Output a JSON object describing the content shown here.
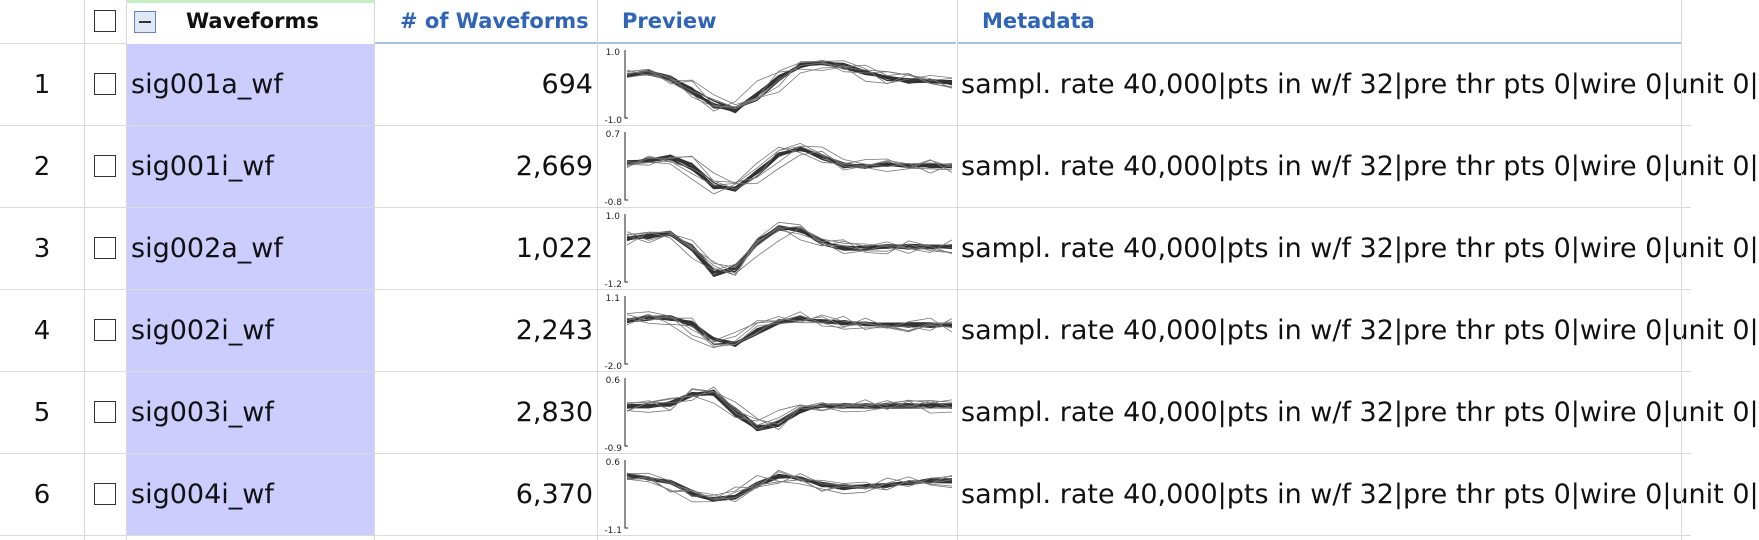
{
  "header": {
    "waveforms_label": "Waveforms",
    "count_label": "# of Waveforms",
    "preview_label": "Preview",
    "metadata_label": "Metadata"
  },
  "rows": [
    {
      "index": "1",
      "name": "sig001a_wf",
      "count": "694",
      "ymax": "1.0",
      "ymin": "-1.0",
      "metadata": "sampl. rate 40,000|pts in w/f 32|pre thr pts 0|wire 0|unit 0|"
    },
    {
      "index": "2",
      "name": "sig001i_wf",
      "count": "2,669",
      "ymax": "0.7",
      "ymin": "-0.8",
      "metadata": "sampl. rate 40,000|pts in w/f 32|pre thr pts 0|wire 0|unit 0|"
    },
    {
      "index": "3",
      "name": "sig002a_wf",
      "count": "1,022",
      "ymax": "1.0",
      "ymin": "-1.2",
      "metadata": "sampl. rate 40,000|pts in w/f 32|pre thr pts 0|wire 0|unit 0|"
    },
    {
      "index": "4",
      "name": "sig002i_wf",
      "count": "2,243",
      "ymax": "1.1",
      "ymin": "-2.0",
      "metadata": "sampl. rate 40,000|pts in w/f 32|pre thr pts 0|wire 0|unit 0|"
    },
    {
      "index": "5",
      "name": "sig003i_wf",
      "count": "2,830",
      "ymax": "0.6",
      "ymin": "-0.9",
      "metadata": "sampl. rate 40,000|pts in w/f 32|pre thr pts 0|wire 0|unit 0|"
    },
    {
      "index": "6",
      "name": "sig004i_wf",
      "count": "6,370",
      "ymax": "0.6",
      "ymin": "-1.1",
      "metadata": "sampl. rate 40,000|pts in w/f 32|pre thr pts 0|wire 0|unit 0|"
    }
  ],
  "colors": {
    "selected_column": "#ccccff",
    "header_text_blue": "#2f64b6",
    "waveform_stroke": "#333333"
  }
}
